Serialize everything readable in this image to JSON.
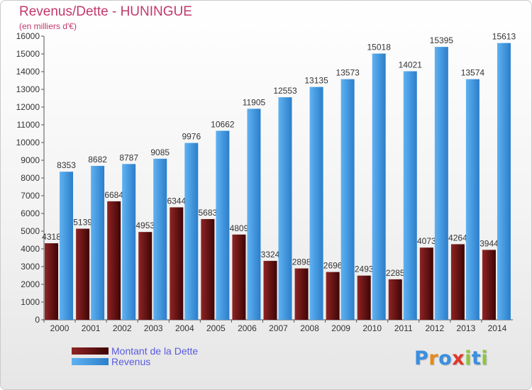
{
  "chart_data": {
    "type": "bar",
    "title": "Revenus/Dette - HUNINGUE",
    "subtitle": "(en milliers d'€)",
    "categories": [
      "2000",
      "2001",
      "2002",
      "2003",
      "2004",
      "2005",
      "2006",
      "2007",
      "2008",
      "2009",
      "2010",
      "2011",
      "2012",
      "2013",
      "2014"
    ],
    "series": [
      {
        "name": "Montant de la Dette",
        "color": "#7a1414",
        "labels": [
          "4318",
          "5139",
          "6684",
          "4953",
          "6344",
          "5683",
          "4809",
          "3324",
          "2898",
          "2696",
          "2493",
          "2285",
          "4073",
          "4264",
          "3944"
        ],
        "values": [
          4318,
          5139,
          6684,
          4953,
          6344,
          5683,
          4809,
          3324,
          2898,
          2696,
          2493,
          2285,
          4073,
          4264,
          3944
        ]
      },
      {
        "name": "Revenus",
        "color": "#3d9be9",
        "labels": [
          "8353",
          "8682",
          "8787",
          "9085",
          "9976",
          "10662",
          "11905",
          "12553",
          "13135",
          "13573",
          "15018",
          "14021",
          "15395",
          "13574",
          "15613"
        ],
        "values": [
          8353,
          8682,
          8787,
          9085,
          9976,
          10662,
          11905,
          12553,
          13135,
          13573,
          15018,
          14021,
          15395,
          13574,
          15613
        ]
      }
    ],
    "yticks": [
      0,
      1000,
      2000,
      3000,
      4000,
      5000,
      6000,
      7000,
      8000,
      9000,
      10000,
      11000,
      12000,
      13000,
      14000,
      15000,
      16000
    ],
    "ylim": [
      0,
      16000
    ],
    "grid": false,
    "legend_position": "bottom-left"
  },
  "branding": {
    "letters": [
      "P",
      "r",
      "o",
      "x",
      "i",
      "t",
      "i"
    ],
    "colors": [
      "#3a8fe0",
      "#e58a1f",
      "#3a8fe0",
      "#e0372b",
      "#8cc63f",
      "#3a8fe0",
      "#8cc63f"
    ]
  }
}
